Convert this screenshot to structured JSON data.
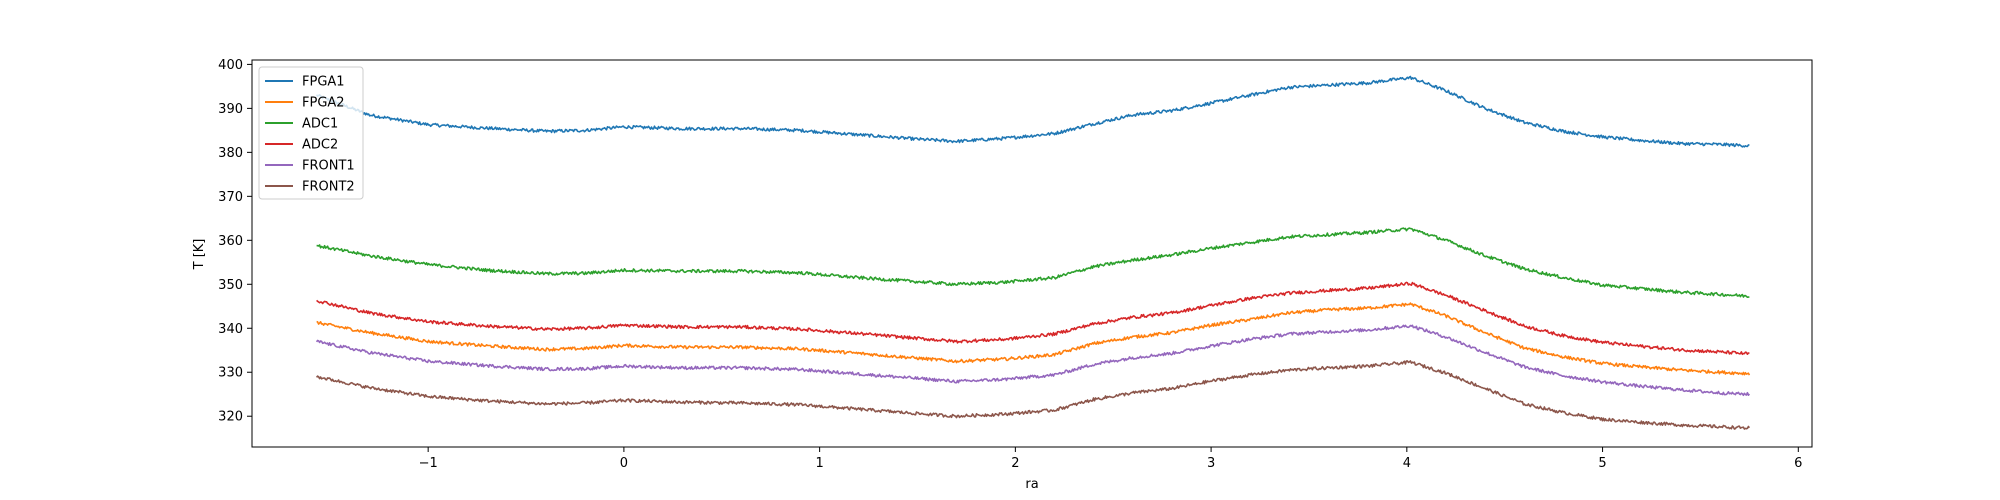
{
  "chart_data": {
    "type": "line",
    "title": "",
    "xlabel": "ra",
    "ylabel": "T [K]",
    "xlim": [
      -1.9,
      6.07
    ],
    "ylim": [
      313,
      401
    ],
    "xticks": [
      -1,
      0,
      1,
      2,
      3,
      4,
      5,
      6
    ],
    "yticks": [
      320,
      330,
      340,
      350,
      360,
      370,
      380,
      390,
      400
    ],
    "xtick_labels": [
      "−1",
      "0",
      "1",
      "2",
      "3",
      "4",
      "5",
      "6"
    ],
    "ytick_labels": [
      "320",
      "330",
      "340",
      "350",
      "360",
      "370",
      "380",
      "390",
      "400"
    ],
    "grid": false,
    "legend_position": "top-left",
    "x": [
      -1.57,
      -1.3,
      -1.0,
      -0.7,
      -0.4,
      -0.2,
      0.0,
      0.3,
      0.6,
      0.9,
      1.2,
      1.5,
      1.7,
      1.95,
      2.2,
      2.4,
      2.6,
      2.8,
      3.0,
      3.2,
      3.4,
      3.6,
      3.8,
      4.02,
      4.2,
      4.4,
      4.6,
      4.8,
      5.0,
      5.2,
      5.4,
      5.6,
      5.75
    ],
    "series": [
      {
        "name": "FPGA1",
        "color": "#1f77b4",
        "values": [
          393.0,
          388.5,
          386.3,
          385.5,
          384.8,
          385.0,
          385.8,
          385.4,
          385.4,
          385.0,
          384.0,
          383.0,
          382.5,
          383.2,
          384.3,
          386.5,
          388.5,
          389.5,
          391.2,
          393.0,
          394.8,
          395.3,
          395.8,
          397.0,
          394.0,
          390.0,
          386.8,
          384.8,
          383.5,
          382.7,
          382.0,
          381.8,
          381.5
        ]
      },
      {
        "name": "FPGA2",
        "color": "#ff7f0e",
        "values": [
          341.3,
          339.0,
          337.0,
          336.0,
          335.2,
          335.4,
          336.1,
          335.7,
          335.7,
          335.3,
          334.3,
          333.2,
          332.5,
          333.0,
          334.0,
          336.5,
          338.0,
          339.0,
          340.7,
          342.0,
          343.5,
          344.2,
          344.6,
          345.5,
          342.8,
          339.0,
          335.5,
          333.5,
          332.0,
          331.2,
          330.5,
          330.0,
          329.7
        ]
      },
      {
        "name": "ADC1",
        "color": "#2ca02c",
        "values": [
          358.8,
          356.5,
          354.5,
          353.2,
          352.4,
          352.5,
          353.2,
          353.0,
          353.0,
          352.6,
          351.5,
          350.6,
          350.0,
          350.5,
          351.5,
          354.0,
          355.5,
          356.7,
          358.2,
          359.5,
          360.8,
          361.3,
          361.8,
          362.6,
          360.0,
          356.5,
          353.5,
          351.5,
          349.8,
          349.0,
          348.2,
          347.7,
          347.3
        ]
      },
      {
        "name": "ADC2",
        "color": "#d62728",
        "values": [
          346.3,
          343.5,
          341.5,
          340.5,
          339.8,
          340.0,
          340.7,
          340.3,
          340.3,
          339.8,
          338.8,
          337.7,
          337.0,
          337.5,
          338.7,
          341.0,
          342.5,
          343.5,
          345.2,
          346.8,
          348.0,
          348.6,
          349.1,
          350.2,
          347.5,
          344.0,
          340.5,
          338.3,
          336.8,
          335.9,
          335.1,
          334.6,
          334.2
        ]
      },
      {
        "name": "FRONT1",
        "color": "#9467bd",
        "values": [
          337.0,
          334.5,
          332.5,
          331.5,
          330.7,
          330.8,
          331.4,
          331.0,
          331.0,
          330.6,
          329.6,
          328.6,
          327.9,
          328.4,
          329.4,
          331.8,
          333.3,
          334.3,
          336.0,
          337.5,
          338.7,
          339.2,
          339.6,
          340.6,
          338.0,
          334.5,
          331.2,
          329.2,
          327.8,
          326.8,
          326.0,
          325.3,
          325.0
        ]
      },
      {
        "name": "FRONT2",
        "color": "#8c564b",
        "values": [
          329.0,
          326.5,
          324.5,
          323.5,
          322.8,
          323.0,
          323.6,
          323.2,
          323.0,
          322.6,
          321.6,
          320.6,
          320.0,
          320.5,
          321.4,
          323.8,
          325.3,
          326.3,
          328.0,
          329.4,
          330.5,
          331.0,
          331.4,
          332.3,
          329.8,
          326.3,
          322.8,
          320.8,
          319.3,
          318.6,
          318.0,
          317.6,
          317.3
        ]
      }
    ]
  }
}
